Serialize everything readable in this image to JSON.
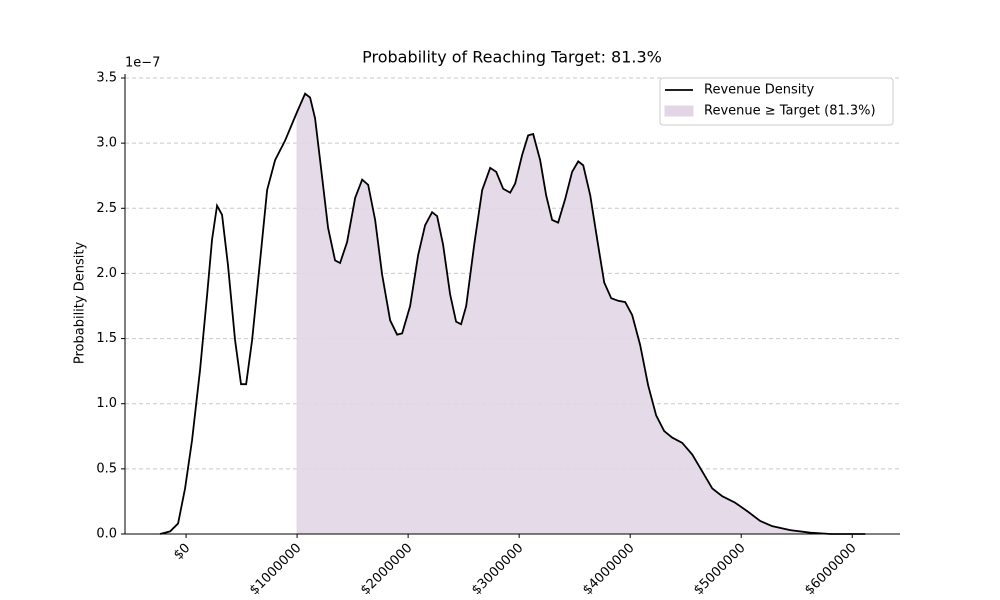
{
  "chart_data": {
    "type": "density",
    "title": "Probability of Reaching Target: 81.3%",
    "ylabel": "Probability Density",
    "y_offset_label": "1e−7",
    "target": 1000000,
    "x": [
      -234000,
      -144000,
      -72000,
      -9000,
      54000,
      126000,
      189000,
      234000,
      279000,
      324000,
      378000,
      441000,
      495000,
      541000,
      595000,
      667000,
      730000,
      802000,
      892000,
      1000000,
      1072000,
      1117000,
      1162000,
      1207000,
      1279000,
      1342000,
      1387000,
      1450000,
      1523000,
      1586000,
      1640000,
      1703000,
      1766000,
      1838000,
      1901000,
      1946000,
      2018000,
      2090000,
      2153000,
      2216000,
      2261000,
      2315000,
      2378000,
      2432000,
      2477000,
      2523000,
      2595000,
      2667000,
      2739000,
      2793000,
      2856000,
      2919000,
      2964000,
      3027000,
      3081000,
      3126000,
      3189000,
      3243000,
      3297000,
      3351000,
      3414000,
      3477000,
      3532000,
      3577000,
      3640000,
      3703000,
      3766000,
      3829000,
      3892000,
      3955000,
      4018000,
      4090000,
      4162000,
      4234000,
      4306000,
      4378000,
      4468000,
      4559000,
      4649000,
      4739000,
      4829000,
      4946000,
      5063000,
      5171000,
      5279000,
      5441000,
      5622000,
      5802000,
      6117000
    ],
    "series": [
      {
        "name": "Revenue Density",
        "color": "#000000",
        "values": [
          0,
          0.02,
          0.08,
          0.35,
          0.72,
          1.26,
          1.83,
          2.26,
          2.52,
          2.45,
          2.06,
          1.49,
          1.15,
          1.15,
          1.49,
          2.1,
          2.64,
          2.87,
          3.02,
          3.24,
          3.38,
          3.35,
          3.19,
          2.87,
          2.35,
          2.1,
          2.08,
          2.24,
          2.58,
          2.72,
          2.68,
          2.41,
          1.99,
          1.64,
          1.53,
          1.54,
          1.75,
          2.14,
          2.37,
          2.47,
          2.44,
          2.22,
          1.84,
          1.63,
          1.61,
          1.75,
          2.22,
          2.64,
          2.81,
          2.78,
          2.65,
          2.62,
          2.69,
          2.91,
          3.06,
          3.07,
          2.87,
          2.6,
          2.41,
          2.39,
          2.57,
          2.78,
          2.86,
          2.83,
          2.6,
          2.26,
          1.93,
          1.81,
          1.79,
          1.78,
          1.68,
          1.45,
          1.14,
          0.91,
          0.79,
          0.74,
          0.7,
          0.61,
          0.48,
          0.35,
          0.29,
          0.24,
          0.17,
          0.1,
          0.06,
          0.03,
          0.01,
          0,
          0
        ]
      }
    ],
    "fill": {
      "name": "Revenue ≥ Target (81.3%)",
      "color": "#e2d6e6"
    },
    "xlim": [
      -550000,
      6430000
    ],
    "xticks": [
      {
        "value": 0,
        "label": "$0"
      },
      {
        "value": 1000000,
        "label": "$1000000"
      },
      {
        "value": 2000000,
        "label": "$2000000"
      },
      {
        "value": 3000000,
        "label": "$3000000"
      },
      {
        "value": 4000000,
        "label": "$4000000"
      },
      {
        "value": 5000000,
        "label": "$5000000"
      },
      {
        "value": 6000000,
        "label": "$6000000"
      }
    ],
    "ylim": [
      0,
      3.5
    ],
    "yticks": [
      {
        "value": 0,
        "label": "0.0"
      },
      0.5,
      {
        "value": 1,
        "label": "1.0"
      },
      1.5,
      {
        "value": 2,
        "label": "2.0"
      },
      2.5,
      {
        "value": 3,
        "label": "3.0"
      },
      3.5
    ],
    "grid": true,
    "legend": "upper right"
  }
}
